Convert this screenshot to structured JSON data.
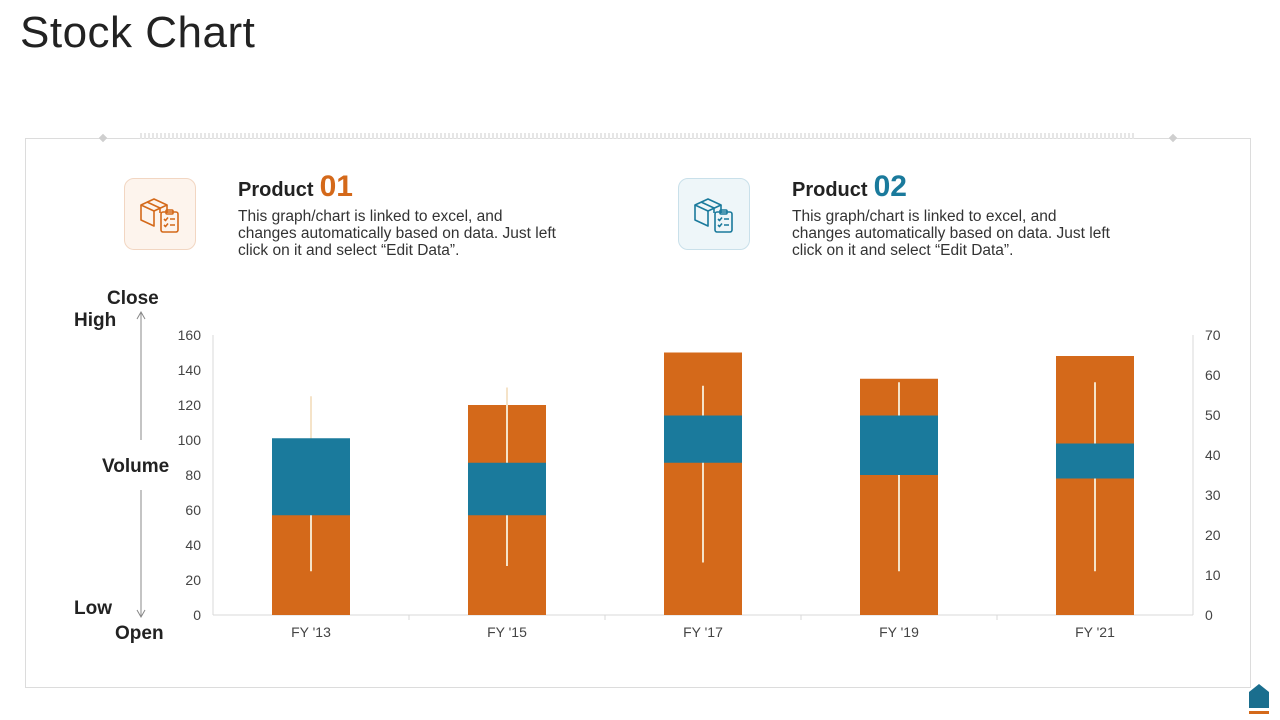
{
  "title": "Stock Chart",
  "products": [
    {
      "title": "Product",
      "number": "01",
      "description": "This graph/chart is linked to excel, and changes automatically based on data. Just left click on it and select “Edit Data”.",
      "icon": "package-checklist-icon",
      "color": "#d4691a"
    },
    {
      "title": "Product",
      "number": "02",
      "description": "This graph/chart is linked to excel, and changes automatically based on data. Just left click on it and select “Edit Data”.",
      "icon": "package-checklist-icon",
      "color": "#1a7a9c"
    }
  ],
  "axis_labels": {
    "close": "Close",
    "high": "High",
    "volume": "Volume",
    "low": "Low",
    "open": "Open"
  },
  "chart_data": {
    "type": "stock-volume-open-high-low-close",
    "categories": [
      "FY '13",
      "FY '15",
      "FY '17",
      "FY '19",
      "FY '21"
    ],
    "volume": [
      100,
      120,
      150,
      135,
      148
    ],
    "open": [
      57,
      57,
      87,
      80,
      78
    ],
    "close": [
      101,
      87,
      114,
      114,
      98
    ],
    "high": [
      125,
      130,
      131,
      133,
      133
    ],
    "low": [
      25,
      28,
      30,
      25,
      25
    ],
    "y_left": {
      "ticks": [
        0,
        20,
        40,
        60,
        80,
        100,
        120,
        140,
        160
      ],
      "range": [
        0,
        160
      ]
    },
    "y_right": {
      "ticks": [
        0,
        10,
        20,
        30,
        40,
        50,
        60,
        70
      ],
      "range": [
        0,
        70
      ]
    },
    "colors": {
      "volume": "#d4691a",
      "updown": "#1a7a9c",
      "hilo": "#f5e3c8"
    },
    "grid": false,
    "legend": "none"
  }
}
